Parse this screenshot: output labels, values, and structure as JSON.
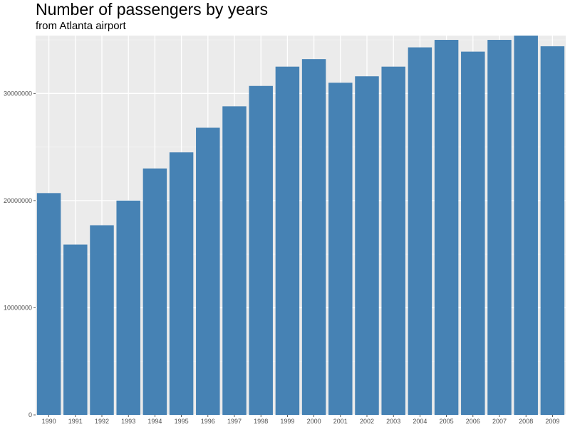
{
  "chart_data": {
    "type": "bar",
    "title": "Number of passengers by years",
    "subtitle": "from Atlanta airport",
    "xlabel": "",
    "ylabel": "",
    "categories": [
      "1990",
      "1991",
      "1992",
      "1993",
      "1994",
      "1995",
      "1996",
      "1997",
      "1998",
      "1999",
      "2000",
      "2001",
      "2002",
      "2003",
      "2004",
      "2005",
      "2006",
      "2007",
      "2008",
      "2009"
    ],
    "values": [
      20700000,
      15900000,
      17700000,
      20000000,
      23000000,
      24500000,
      26800000,
      28800000,
      30700000,
      32500000,
      33200000,
      31000000,
      31600000,
      32500000,
      34300000,
      35000000,
      33900000,
      35000000,
      35400000,
      34400000
    ],
    "y_ticks": [
      0,
      10000000,
      20000000,
      30000000
    ],
    "y_tick_labels": [
      "0",
      "10000000",
      "20000000",
      "30000000"
    ],
    "ylim": [
      0,
      35400000
    ],
    "grid": true,
    "legend": "none",
    "colors": {
      "bar": "#4682b4",
      "panel": "#ebebeb",
      "grid_major": "#ffffff",
      "grid_minor": "#f5f5f5"
    }
  }
}
